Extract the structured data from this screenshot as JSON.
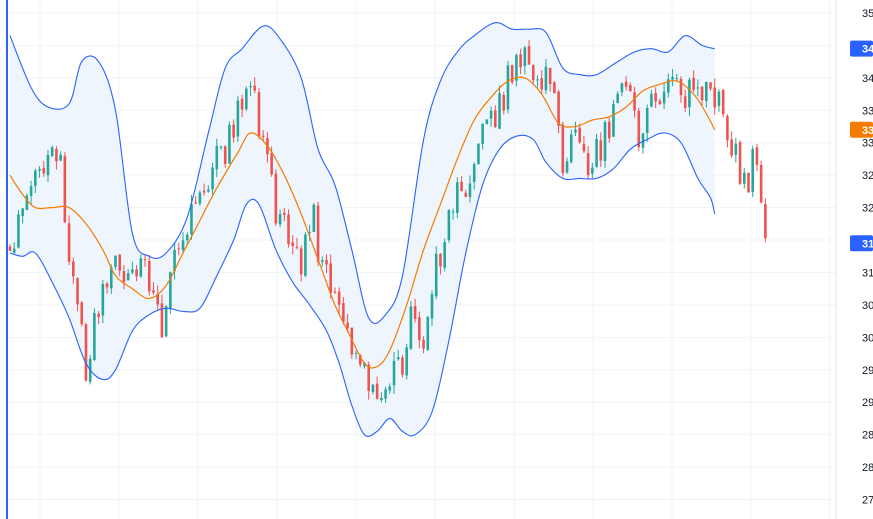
{
  "chart_data": {
    "type": "candlestick",
    "title": "",
    "xlabel": "",
    "ylabel": "",
    "ylim": [
      27.2,
      35.2
    ],
    "y_ticks": [
      {
        "value": 35.0,
        "label": "35"
      },
      {
        "value": 34.5,
        "label": "34"
      },
      {
        "value": 34.0,
        "label": "34"
      },
      {
        "value": 33.5,
        "label": "33"
      },
      {
        "value": 33.0,
        "label": "33"
      },
      {
        "value": 32.5,
        "label": "32"
      },
      {
        "value": 32.0,
        "label": "32"
      },
      {
        "value": 31.5,
        "label": "31"
      },
      {
        "value": 31.0,
        "label": "31"
      },
      {
        "value": 30.5,
        "label": "30"
      },
      {
        "value": 30.0,
        "label": "30"
      },
      {
        "value": 29.5,
        "label": "29"
      },
      {
        "value": 29.0,
        "label": "29"
      },
      {
        "value": 28.5,
        "label": "28"
      },
      {
        "value": 28.0,
        "label": "28"
      },
      {
        "value": 27.5,
        "label": "27"
      }
    ],
    "grid": true,
    "bar_count": 180,
    "price_tags": [
      {
        "name": "Upper band",
        "value": 34.45,
        "label": "34",
        "color": "#2962ff"
      },
      {
        "name": "Basis",
        "value": 33.2,
        "label": "33",
        "color": "#f57c00"
      },
      {
        "name": "Last",
        "value": 31.45,
        "label": "31",
        "color": "#2962ff"
      }
    ],
    "colors": {
      "up": "#26a69a",
      "down": "#ef5350",
      "bands": "#2962ff",
      "basis": "#f57c00",
      "fill": "#eef5fd"
    },
    "bollinger": {
      "upper": [
        {
          "x": 0,
          "y": 34.65
        },
        {
          "x": 5,
          "y": 33.85
        },
        {
          "x": 9,
          "y": 33.55
        },
        {
          "x": 14,
          "y": 33.6
        },
        {
          "x": 17,
          "y": 34.25
        },
        {
          "x": 21,
          "y": 34.25
        },
        {
          "x": 25,
          "y": 33.5
        },
        {
          "x": 29,
          "y": 31.6
        },
        {
          "x": 33,
          "y": 31.25
        },
        {
          "x": 37,
          "y": 31.3
        },
        {
          "x": 42,
          "y": 31.85
        },
        {
          "x": 47,
          "y": 33.15
        },
        {
          "x": 51,
          "y": 34.15
        },
        {
          "x": 55,
          "y": 34.45
        },
        {
          "x": 60,
          "y": 34.8
        },
        {
          "x": 64,
          "y": 34.6
        },
        {
          "x": 69,
          "y": 34.0
        },
        {
          "x": 73,
          "y": 32.9
        },
        {
          "x": 77,
          "y": 32.35
        },
        {
          "x": 81,
          "y": 31.35
        },
        {
          "x": 85,
          "y": 30.3
        },
        {
          "x": 89,
          "y": 30.35
        },
        {
          "x": 93,
          "y": 30.95
        },
        {
          "x": 98,
          "y": 33.05
        },
        {
          "x": 102,
          "y": 33.95
        },
        {
          "x": 106,
          "y": 34.4
        },
        {
          "x": 110,
          "y": 34.65
        },
        {
          "x": 115,
          "y": 34.85
        },
        {
          "x": 119,
          "y": 34.75
        },
        {
          "x": 123,
          "y": 34.75
        },
        {
          "x": 127,
          "y": 34.7
        },
        {
          "x": 131,
          "y": 34.15
        },
        {
          "x": 135,
          "y": 34.05
        },
        {
          "x": 139,
          "y": 34.05
        },
        {
          "x": 144,
          "y": 34.25
        },
        {
          "x": 148,
          "y": 34.4
        },
        {
          "x": 152,
          "y": 34.45
        },
        {
          "x": 156,
          "y": 34.4
        },
        {
          "x": 160,
          "y": 34.65
        },
        {
          "x": 164,
          "y": 34.5
        },
        {
          "x": 167,
          "y": 34.45
        }
      ],
      "basis": [
        {
          "x": 0,
          "y": 32.5
        },
        {
          "x": 3,
          "y": 32.2
        },
        {
          "x": 6,
          "y": 32.0
        },
        {
          "x": 10,
          "y": 32.0
        },
        {
          "x": 14,
          "y": 32.0
        },
        {
          "x": 18,
          "y": 31.75
        },
        {
          "x": 22,
          "y": 31.35
        },
        {
          "x": 25,
          "y": 30.95
        },
        {
          "x": 29,
          "y": 30.75
        },
        {
          "x": 33,
          "y": 30.6
        },
        {
          "x": 37,
          "y": 30.8
        },
        {
          "x": 41,
          "y": 31.3
        },
        {
          "x": 45,
          "y": 31.8
        },
        {
          "x": 49,
          "y": 32.3
        },
        {
          "x": 54,
          "y": 32.85
        },
        {
          "x": 57,
          "y": 33.15
        },
        {
          "x": 61,
          "y": 32.95
        },
        {
          "x": 65,
          "y": 32.5
        },
        {
          "x": 69,
          "y": 31.9
        },
        {
          "x": 73,
          "y": 31.2
        },
        {
          "x": 77,
          "y": 30.5
        },
        {
          "x": 80,
          "y": 30.1
        },
        {
          "x": 84,
          "y": 29.6
        },
        {
          "x": 87,
          "y": 29.55
        },
        {
          "x": 90,
          "y": 29.8
        },
        {
          "x": 94,
          "y": 30.5
        },
        {
          "x": 98,
          "y": 31.35
        },
        {
          "x": 102,
          "y": 32.05
        },
        {
          "x": 106,
          "y": 32.75
        },
        {
          "x": 110,
          "y": 33.35
        },
        {
          "x": 114,
          "y": 33.7
        },
        {
          "x": 118,
          "y": 33.95
        },
        {
          "x": 122,
          "y": 34.0
        },
        {
          "x": 126,
          "y": 33.75
        },
        {
          "x": 130,
          "y": 33.3
        },
        {
          "x": 134,
          "y": 33.25
        },
        {
          "x": 138,
          "y": 33.35
        },
        {
          "x": 142,
          "y": 33.4
        },
        {
          "x": 146,
          "y": 33.55
        },
        {
          "x": 150,
          "y": 33.8
        },
        {
          "x": 154,
          "y": 33.9
        },
        {
          "x": 158,
          "y": 33.95
        },
        {
          "x": 162,
          "y": 33.75
        },
        {
          "x": 165,
          "y": 33.45
        },
        {
          "x": 167,
          "y": 33.2
        }
      ],
      "lower": [
        {
          "x": 0,
          "y": 31.3
        },
        {
          "x": 3,
          "y": 31.25
        },
        {
          "x": 6,
          "y": 31.3
        },
        {
          "x": 10,
          "y": 30.85
        },
        {
          "x": 14,
          "y": 30.3
        },
        {
          "x": 18,
          "y": 29.6
        },
        {
          "x": 22,
          "y": 29.35
        },
        {
          "x": 25,
          "y": 29.5
        },
        {
          "x": 29,
          "y": 30.1
        },
        {
          "x": 33,
          "y": 30.35
        },
        {
          "x": 37,
          "y": 30.45
        },
        {
          "x": 41,
          "y": 30.4
        },
        {
          "x": 45,
          "y": 30.45
        },
        {
          "x": 49,
          "y": 30.95
        },
        {
          "x": 53,
          "y": 31.5
        },
        {
          "x": 56,
          "y": 32.05
        },
        {
          "x": 59,
          "y": 32.05
        },
        {
          "x": 63,
          "y": 31.35
        },
        {
          "x": 67,
          "y": 30.85
        },
        {
          "x": 71,
          "y": 30.5
        },
        {
          "x": 75,
          "y": 30.1
        },
        {
          "x": 78,
          "y": 29.6
        },
        {
          "x": 81,
          "y": 28.95
        },
        {
          "x": 84,
          "y": 28.5
        },
        {
          "x": 87,
          "y": 28.55
        },
        {
          "x": 90,
          "y": 28.75
        },
        {
          "x": 93,
          "y": 28.55
        },
        {
          "x": 96,
          "y": 28.5
        },
        {
          "x": 100,
          "y": 28.85
        },
        {
          "x": 104,
          "y": 29.95
        },
        {
          "x": 108,
          "y": 31.3
        },
        {
          "x": 112,
          "y": 32.35
        },
        {
          "x": 116,
          "y": 32.9
        },
        {
          "x": 120,
          "y": 33.1
        },
        {
          "x": 124,
          "y": 33.05
        },
        {
          "x": 127,
          "y": 32.7
        },
        {
          "x": 131,
          "y": 32.45
        },
        {
          "x": 135,
          "y": 32.45
        },
        {
          "x": 139,
          "y": 32.45
        },
        {
          "x": 143,
          "y": 32.6
        },
        {
          "x": 147,
          "y": 32.9
        },
        {
          "x": 151,
          "y": 33.05
        },
        {
          "x": 155,
          "y": 33.15
        },
        {
          "x": 159,
          "y": 33.0
        },
        {
          "x": 163,
          "y": 32.45
        },
        {
          "x": 166,
          "y": 32.15
        },
        {
          "x": 167,
          "y": 31.9
        }
      ]
    },
    "close_path": [
      {
        "x": 0,
        "y": 31.4
      },
      {
        "x": 3,
        "y": 31.9
      },
      {
        "x": 6,
        "y": 32.8
      },
      {
        "x": 9,
        "y": 32.7
      },
      {
        "x": 12,
        "y": 32.6
      },
      {
        "x": 14,
        "y": 31.4
      },
      {
        "x": 16,
        "y": 30.3
      },
      {
        "x": 18,
        "y": 29.6
      },
      {
        "x": 21,
        "y": 30.5
      },
      {
        "x": 24,
        "y": 31.3
      },
      {
        "x": 27,
        "y": 30.6
      },
      {
        "x": 30,
        "y": 31.2
      },
      {
        "x": 33,
        "y": 30.8
      },
      {
        "x": 36,
        "y": 30.1
      },
      {
        "x": 39,
        "y": 31.1
      },
      {
        "x": 42,
        "y": 31.8
      },
      {
        "x": 45,
        "y": 32.3
      },
      {
        "x": 48,
        "y": 32.6
      },
      {
        "x": 51,
        "y": 32.9
      },
      {
        "x": 54,
        "y": 33.4
      },
      {
        "x": 57,
        "y": 34.1
      },
      {
        "x": 59,
        "y": 33.3
      },
      {
        "x": 61,
        "y": 32.9
      },
      {
        "x": 63,
        "y": 32.0
      },
      {
        "x": 66,
        "y": 31.6
      },
      {
        "x": 69,
        "y": 31.2
      },
      {
        "x": 72,
        "y": 31.8
      },
      {
        "x": 74,
        "y": 31.0
      },
      {
        "x": 77,
        "y": 30.6
      },
      {
        "x": 80,
        "y": 30.2
      },
      {
        "x": 83,
        "y": 29.6
      },
      {
        "x": 86,
        "y": 29.0
      },
      {
        "x": 89,
        "y": 29.1
      },
      {
        "x": 91,
        "y": 29.9
      },
      {
        "x": 93,
        "y": 29.3
      },
      {
        "x": 95,
        "y": 30.3
      },
      {
        "x": 98,
        "y": 30.1
      },
      {
        "x": 101,
        "y": 31.1
      },
      {
        "x": 104,
        "y": 31.8
      },
      {
        "x": 107,
        "y": 32.3
      },
      {
        "x": 110,
        "y": 32.7
      },
      {
        "x": 113,
        "y": 33.2
      },
      {
        "x": 116,
        "y": 33.6
      },
      {
        "x": 119,
        "y": 34.1
      },
      {
        "x": 122,
        "y": 34.4
      },
      {
        "x": 125,
        "y": 33.8
      },
      {
        "x": 127,
        "y": 34.2
      },
      {
        "x": 129,
        "y": 33.5
      },
      {
        "x": 131,
        "y": 32.6
      },
      {
        "x": 134,
        "y": 33.0
      },
      {
        "x": 137,
        "y": 32.7
      },
      {
        "x": 140,
        "y": 32.9
      },
      {
        "x": 143,
        "y": 33.5
      },
      {
        "x": 146,
        "y": 33.8
      },
      {
        "x": 149,
        "y": 33.2
      },
      {
        "x": 152,
        "y": 33.6
      },
      {
        "x": 155,
        "y": 33.8
      },
      {
        "x": 158,
        "y": 33.9
      },
      {
        "x": 161,
        "y": 33.7
      },
      {
        "x": 164,
        "y": 33.9
      },
      {
        "x": 167,
        "y": 33.8
      },
      {
        "x": 169,
        "y": 33.3
      },
      {
        "x": 171,
        "y": 32.9
      },
      {
        "x": 173,
        "y": 32.6
      },
      {
        "x": 175,
        "y": 32.2
      },
      {
        "x": 176,
        "y": 33.0
      },
      {
        "x": 177,
        "y": 32.4
      },
      {
        "x": 178,
        "y": 32.0
      },
      {
        "x": 179,
        "y": 31.45
      }
    ],
    "candle_seed": 20240517
  }
}
